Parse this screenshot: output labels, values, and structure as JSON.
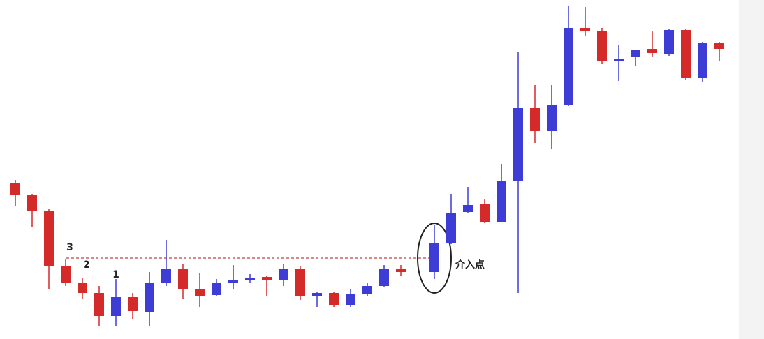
{
  "chart_data": {
    "type": "candlestick",
    "categories": [
      null,
      null,
      null,
      null,
      null,
      null,
      null,
      null,
      null,
      null,
      null,
      null,
      null,
      null,
      null,
      null,
      null,
      null,
      null,
      null,
      null,
      null,
      null,
      null,
      null,
      null,
      null,
      null,
      null,
      null,
      null,
      null,
      null,
      null,
      null,
      null,
      null,
      null,
      null,
      null,
      null,
      null,
      null
    ],
    "open": [
      238,
      220,
      198,
      118,
      95,
      80,
      47,
      74,
      52,
      95,
      115,
      86,
      77,
      94,
      98,
      103,
      98,
      115,
      76,
      80,
      63,
      79,
      90,
      115,
      null,
      110,
      152,
      196,
      207,
      182,
      240,
      345,
      312,
      350,
      460,
      455,
      412,
      418,
      430,
      423,
      457,
      388,
      438
    ],
    "high": [
      242,
      222,
      200,
      128,
      102,
      90,
      100,
      80,
      110,
      156,
      122,
      108,
      100,
      120,
      107,
      104,
      122,
      118,
      82,
      82,
      85,
      95,
      120,
      120,
      null,
      178,
      222,
      232,
      215,
      265,
      425,
      378,
      378,
      492,
      490,
      460,
      435,
      428,
      455,
      458,
      458,
      440,
      440
    ],
    "low": [
      205,
      174,
      86,
      90,
      72,
      32,
      32,
      42,
      32,
      90,
      72,
      60,
      75,
      86,
      95,
      76,
      90,
      70,
      60,
      60,
      60,
      75,
      88,
      104,
      null,
      100,
      150,
      194,
      180,
      182,
      80,
      295,
      286,
      348,
      448,
      408,
      384,
      405,
      418,
      420,
      386,
      382,
      412
    ],
    "close": [
      220,
      198,
      118,
      95,
      80,
      47,
      74,
      54,
      95,
      115,
      86,
      76,
      95,
      98,
      102,
      99,
      115,
      75,
      80,
      63,
      78,
      90,
      114,
      110,
      null,
      152,
      195,
      206,
      182,
      240,
      345,
      312,
      350,
      460,
      455,
      412,
      416,
      428,
      424,
      457,
      388,
      438,
      430
    ],
    "up_color": "#3d3dd6",
    "down_color": "#d42a2a",
    "ylim": [
      0,
      500
    ],
    "hline": 130,
    "annotations": [
      "3",
      "2",
      "1",
      "介入点"
    ]
  }
}
